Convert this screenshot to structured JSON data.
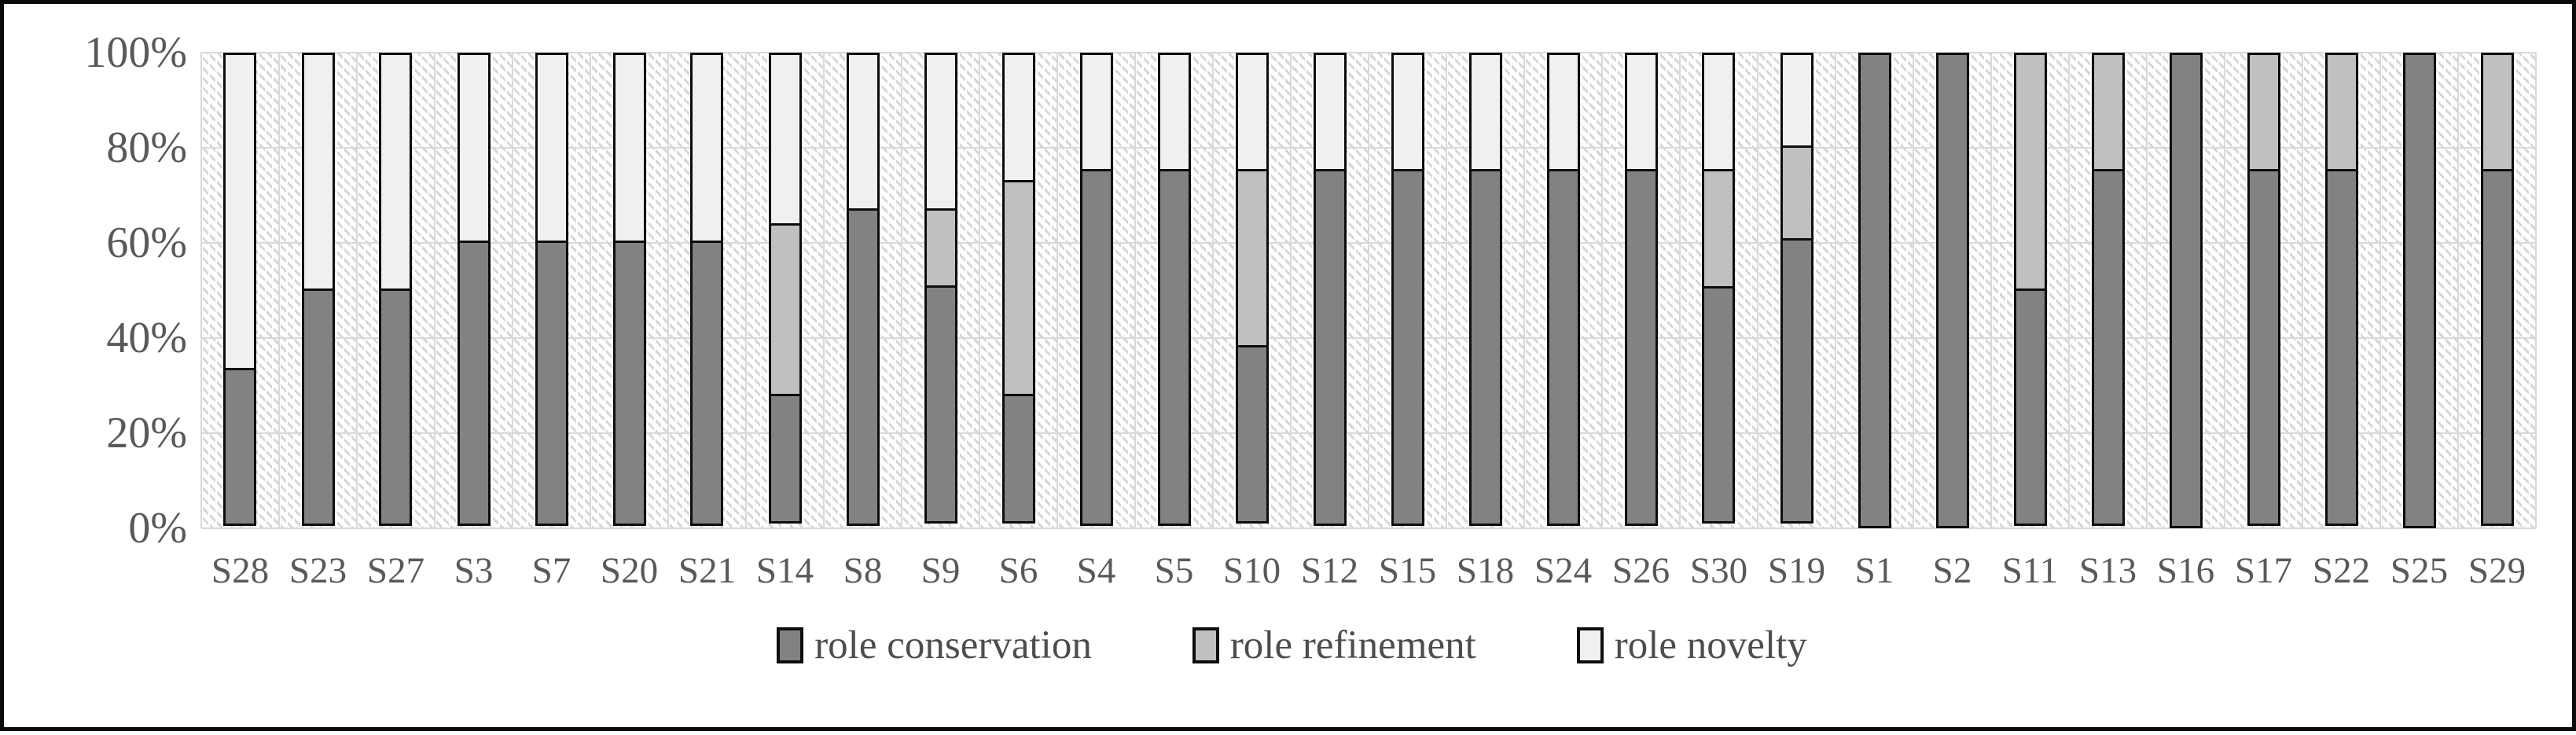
{
  "chart_data": {
    "type": "bar",
    "stacked": true,
    "percent_stacked": true,
    "title": "",
    "xlabel": "",
    "ylabel": "",
    "ylim": [
      0,
      100
    ],
    "y_tick_labels": [
      "100%",
      "80%",
      "60%",
      "40%",
      "20%",
      "0%"
    ],
    "grid": "horizontal and vertical light gray, hatched plot background",
    "legend_position": "bottom-center",
    "categories": [
      "S28",
      "S23",
      "S27",
      "S3",
      "S7",
      "S20",
      "S21",
      "S14",
      "S8",
      "S9",
      "S6",
      "S4",
      "S5",
      "S10",
      "S12",
      "S15",
      "S18",
      "S24",
      "S26",
      "S30",
      "S19",
      "S1",
      "S2",
      "S11",
      "S13",
      "S16",
      "S17",
      "S22",
      "S25",
      "S29"
    ],
    "series": [
      {
        "name": "role conservation",
        "color": "#828282",
        "values": [
          33.3,
          50,
          50,
          60,
          60,
          60,
          60,
          27.3,
          66.7,
          50,
          27.3,
          75,
          75,
          37.5,
          75,
          75,
          75,
          75,
          75,
          50,
          60,
          100,
          100,
          50,
          75,
          100,
          75,
          75,
          100,
          75
        ]
      },
      {
        "name": "role refinement",
        "color": "#c0c0c0",
        "values": [
          0,
          0,
          0,
          0,
          0,
          0,
          0,
          36.4,
          0,
          16.7,
          45.4,
          0,
          0,
          37.5,
          0,
          0,
          0,
          0,
          0,
          25,
          20,
          0,
          0,
          50,
          25,
          0,
          25,
          25,
          0,
          25
        ]
      },
      {
        "name": "role novelty",
        "color": "#f0f0f0",
        "values": [
          66.7,
          50,
          50,
          40,
          40,
          40,
          40,
          36.3,
          33.3,
          33.3,
          27.3,
          25,
          25,
          25,
          25,
          25,
          25,
          25,
          25,
          25,
          20,
          0,
          0,
          0,
          0,
          0,
          0,
          0,
          0,
          0
        ]
      }
    ],
    "colors": {
      "bar_border": "#0d0d0d",
      "gridline": "#d9d9d9",
      "axis_text": "#595959",
      "legend_text": "#4d4d4d",
      "frame_border": "#0a0a0a",
      "plot_hatch": "#d6d6d6"
    }
  }
}
